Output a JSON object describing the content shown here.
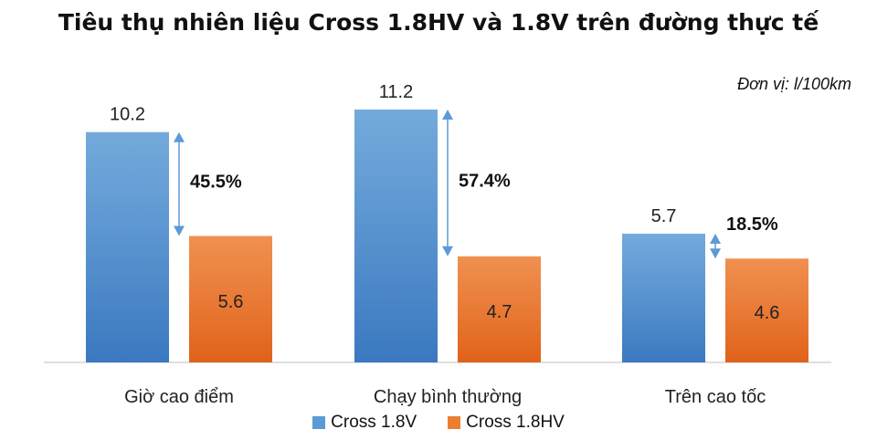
{
  "chart_data": {
    "type": "bar",
    "title": "Tiêu thụ nhiên liệu Cross 1.8HV và 1.8V trên đường thực tế",
    "unit_note": "Đơn vị: l/100km",
    "categories": [
      "Giờ cao điểm",
      "Chạy bình thường",
      "Trên cao tốc"
    ],
    "series": [
      {
        "name": "Cross 1.8V",
        "values": [
          10.2,
          11.2,
          5.7
        ],
        "color": "#5b9bd5"
      },
      {
        "name": "Cross 1.8HV",
        "values": [
          5.6,
          4.7,
          4.6
        ],
        "color": "#ed7d31"
      }
    ],
    "differences": [
      "45.5%",
      "57.4%",
      "18.5%"
    ],
    "ylim": [
      0,
      12
    ],
    "grid": false,
    "legend_position": "bottom"
  },
  "colors": {
    "series_1": "#5b9bd5",
    "series_2": "#ed7d31",
    "arrow": "#5b9bd5",
    "axis": "#bfbfbf"
  }
}
